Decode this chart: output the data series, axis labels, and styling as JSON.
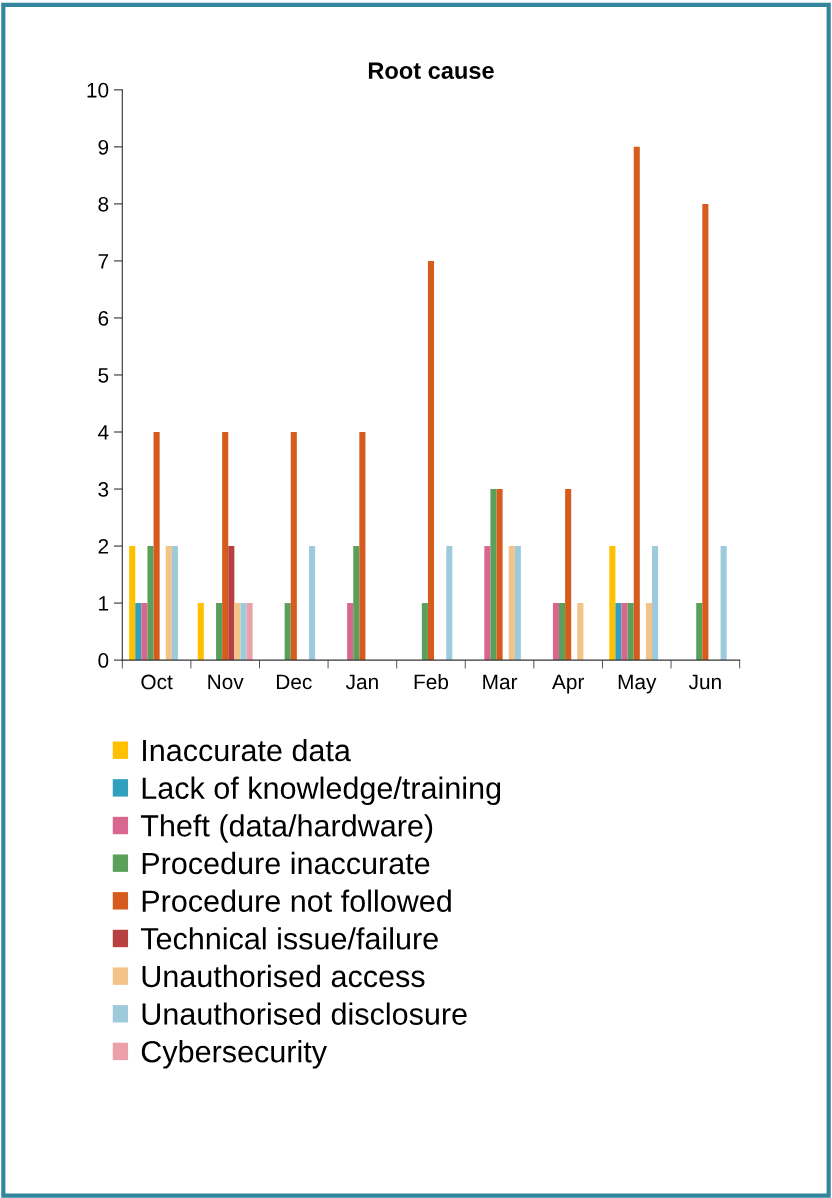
{
  "chart_data": {
    "type": "bar",
    "title": "Root cause",
    "categories": [
      "Oct",
      "Nov",
      "Dec",
      "Jan",
      "Feb",
      "Mar",
      "Apr",
      "May",
      "Jun"
    ],
    "series": [
      {
        "name": "Inaccurate data",
        "color": "#ffc000",
        "values": [
          2,
          1,
          0,
          0,
          0,
          0,
          0,
          2,
          0
        ]
      },
      {
        "name": "Lack of knowledge/training",
        "color": "#31a0be",
        "values": [
          1,
          0,
          0,
          0,
          0,
          0,
          0,
          1,
          0
        ]
      },
      {
        "name": "Theft (data/hardware)",
        "color": "#d9668e",
        "values": [
          1,
          0,
          0,
          1,
          0,
          2,
          1,
          1,
          0
        ]
      },
      {
        "name": "Procedure inaccurate",
        "color": "#5aa05a",
        "values": [
          2,
          1,
          1,
          2,
          1,
          3,
          1,
          1,
          1
        ]
      },
      {
        "name": "Procedure not followed",
        "color": "#d65c1e",
        "values": [
          4,
          4,
          4,
          4,
          7,
          3,
          3,
          9,
          8
        ]
      },
      {
        "name": "Technical issue/failure",
        "color": "#b94040",
        "values": [
          0,
          2,
          0,
          0,
          0,
          0,
          0,
          0,
          0
        ]
      },
      {
        "name": "Unauthorised access",
        "color": "#f4c387",
        "values": [
          2,
          1,
          0,
          0,
          0,
          2,
          1,
          1,
          0
        ]
      },
      {
        "name": "Unauthorised disclosure",
        "color": "#9dcbdc",
        "values": [
          2,
          1,
          2,
          0,
          2,
          2,
          0,
          2,
          2
        ]
      },
      {
        "name": "Cybersecurity",
        "color": "#eba0aa",
        "values": [
          0,
          1,
          0,
          0,
          0,
          0,
          0,
          0,
          0
        ]
      }
    ],
    "ylim": [
      0,
      10
    ],
    "yticks": [
      0,
      1,
      2,
      3,
      4,
      5,
      6,
      7,
      8,
      9,
      10
    ],
    "grid": false,
    "legend": "bottom"
  }
}
